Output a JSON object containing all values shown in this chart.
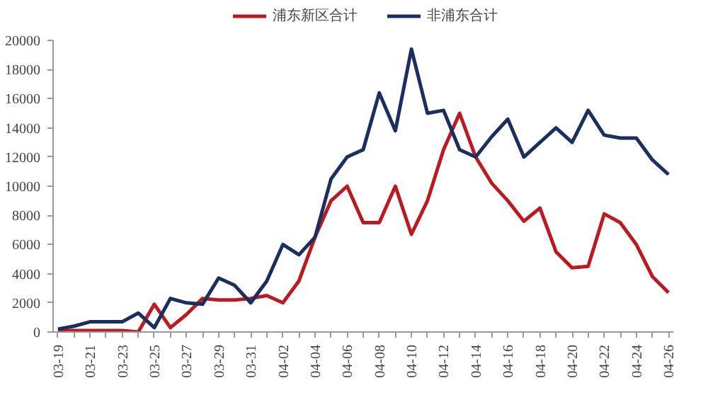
{
  "chart_data": {
    "type": "line",
    "categories": [
      "03-19",
      null,
      "03-21",
      null,
      "03-23",
      null,
      "03-25",
      null,
      "03-27",
      null,
      "03-29",
      null,
      "03-31",
      null,
      "04-02",
      null,
      "04-04",
      null,
      "04-06",
      null,
      "04-08",
      null,
      "04-10",
      null,
      "04-12",
      null,
      "04-14",
      null,
      "04-16",
      null,
      "04-18",
      null,
      "04-20",
      null,
      "04-22",
      null,
      "04-24",
      null,
      "04-26"
    ],
    "series": [
      {
        "name": "浦东新区合计",
        "color": "#b81c22",
        "values": [
          100,
          100,
          100,
          100,
          100,
          0,
          1900,
          300,
          1200,
          2300,
          2200,
          2200,
          2300,
          2500,
          2000,
          3500,
          6500,
          9000,
          10000,
          7500,
          7500,
          10000,
          6700,
          9000,
          12500,
          15000,
          12000,
          10200,
          9000,
          7600,
          8500,
          5500,
          4400,
          4500,
          8100,
          7500,
          6000,
          3800,
          2700
        ]
      },
      {
        "name": "非浦东合计",
        "color": "#1b2f5e",
        "values": [
          200,
          400,
          700,
          700,
          700,
          1300,
          300,
          2300,
          2000,
          1900,
          3700,
          3200,
          2000,
          3500,
          6000,
          5300,
          6500,
          10500,
          12000,
          12500,
          16400,
          13800,
          19400,
          15000,
          15200,
          12500,
          12000,
          13400,
          14600,
          12000,
          13000,
          14000,
          13000,
          15200,
          13500,
          13300,
          13300,
          11800,
          10800
        ]
      }
    ],
    "ylim": [
      0,
      20000
    ],
    "yticks": [
      0,
      2000,
      4000,
      6000,
      8000,
      10000,
      12000,
      14000,
      16000,
      18000,
      20000
    ],
    "legend": "top",
    "grid": false
  }
}
